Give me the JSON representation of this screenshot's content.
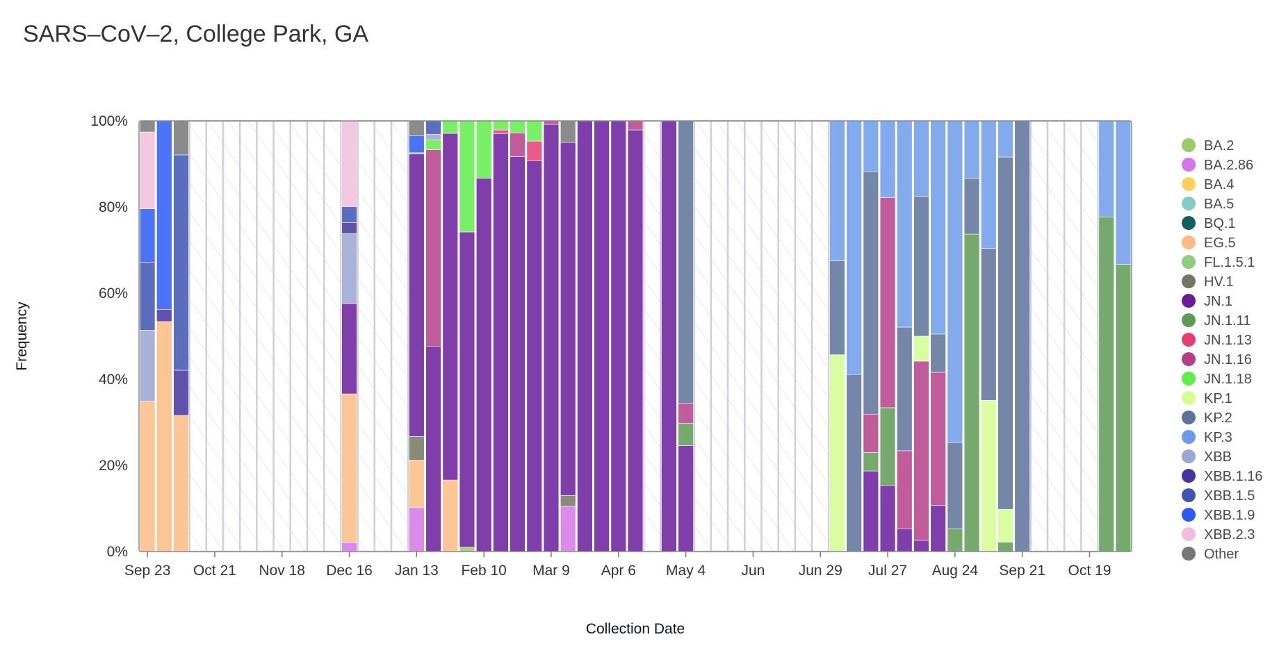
{
  "chart_data": {
    "type": "bar",
    "stacked": true,
    "title": "SARS–CoV–2, College Park, GA",
    "xlabel": "Collection Date",
    "ylabel": "Frequency",
    "ylim": [
      0,
      100
    ],
    "yticks": [
      "0%",
      "20%",
      "40%",
      "60%",
      "80%",
      "100%"
    ],
    "grid": false,
    "legend_position": "right",
    "n_weeks": 59,
    "xticks": [
      {
        "week": 0,
        "label": "Sep 23"
      },
      {
        "week": 4,
        "label": "Oct 21"
      },
      {
        "week": 8,
        "label": "Nov 18"
      },
      {
        "week": 12,
        "label": "Dec 16"
      },
      {
        "week": 16,
        "label": "Jan 13"
      },
      {
        "week": 20,
        "label": "Feb 10"
      },
      {
        "week": 24,
        "label": "Mar 9"
      },
      {
        "week": 28,
        "label": "Apr 6"
      },
      {
        "week": 32,
        "label": "May 4"
      },
      {
        "week": 36,
        "label": "Jun"
      },
      {
        "week": 40,
        "label": "Jun 29"
      },
      {
        "week": 44,
        "label": "Jul 27"
      },
      {
        "week": 48,
        "label": "Aug 24"
      },
      {
        "week": 52,
        "label": "Sep 21"
      },
      {
        "week": 56,
        "label": "Oct 19"
      }
    ],
    "legend": [
      {
        "name": "BA.2",
        "color": "#9cc96b"
      },
      {
        "name": "BA.2.86",
        "color": "#d575e8"
      },
      {
        "name": "BA.4",
        "color": "#fdd05c"
      },
      {
        "name": "BA.5",
        "color": "#84cbc3"
      },
      {
        "name": "BQ.1",
        "color": "#165e5f"
      },
      {
        "name": "EG.5",
        "color": "#fcbb84"
      },
      {
        "name": "FL.1.5.1",
        "color": "#8fcd7e"
      },
      {
        "name": "HV.1",
        "color": "#767563"
      },
      {
        "name": "JN.1",
        "color": "#681c9a"
      },
      {
        "name": "JN.1.11",
        "color": "#5e9a55"
      },
      {
        "name": "JN.1.13",
        "color": "#e43e74"
      },
      {
        "name": "JN.1.16",
        "color": "#b53f87"
      },
      {
        "name": "JN.1.18",
        "color": "#60ec4b"
      },
      {
        "name": "KP.1",
        "color": "#d5fd90"
      },
      {
        "name": "KP.2",
        "color": "#5d7299"
      },
      {
        "name": "KP.3",
        "color": "#6d9be9"
      },
      {
        "name": "XBB",
        "color": "#9aa6d4"
      },
      {
        "name": "XBB.1.16",
        "color": "#45359c"
      },
      {
        "name": "XBB.1.5",
        "color": "#3e55b2"
      },
      {
        "name": "XBB.1.9",
        "color": "#2d5af4"
      },
      {
        "name": "XBB.2.3",
        "color": "#f2bddc"
      },
      {
        "name": "Other",
        "color": "#777777"
      }
    ],
    "bars": [
      {
        "week": 0,
        "segments": [
          [
            "EG.5",
            34.9
          ],
          [
            "XBB",
            16.5
          ],
          [
            "XBB.1.5",
            15.8
          ],
          [
            "XBB.1.9",
            12.4
          ],
          [
            "XBB.2.3",
            17.8
          ],
          [
            "Other",
            2.6
          ]
        ]
      },
      {
        "week": 1,
        "segments": [
          [
            "EG.5",
            53.4
          ],
          [
            "XBB.1.16",
            2.8
          ],
          [
            "XBB.1.9",
            43.8
          ]
        ]
      },
      {
        "week": 2,
        "segments": [
          [
            "EG.5",
            31.6
          ],
          [
            "XBB.1.16",
            10.5
          ],
          [
            "XBB.1.5",
            50.0
          ],
          [
            "Other",
            7.9
          ]
        ]
      },
      {
        "week": 12,
        "segments": [
          [
            "BA.2.86",
            2.1
          ],
          [
            "EG.5",
            34.5
          ],
          [
            "JN.1",
            21.0
          ],
          [
            "XBB",
            16.2
          ],
          [
            "XBB.1.16",
            2.6
          ],
          [
            "XBB.1.5",
            3.7
          ],
          [
            "XBB.2.3",
            19.9
          ]
        ]
      },
      {
        "week": 16,
        "segments": [
          [
            "BA.2.86",
            10.2
          ],
          [
            "EG.5",
            11.0
          ],
          [
            "HV.1",
            5.5
          ],
          [
            "JN.1",
            65.6
          ],
          [
            "XBB",
            0.3
          ],
          [
            "XBB.1.9",
            3.9
          ],
          [
            "Other",
            3.5
          ]
        ]
      },
      {
        "week": 17,
        "segments": [
          [
            "JN.1",
            47.7
          ],
          [
            "JN.1.16",
            45.6
          ],
          [
            "JN.1.18",
            2.3
          ],
          [
            "XBB",
            1.3
          ],
          [
            "XBB.1.5",
            3.1
          ]
        ]
      },
      {
        "week": 18,
        "segments": [
          [
            "EG.5",
            16.6
          ],
          [
            "JN.1",
            80.5
          ],
          [
            "JN.1.18",
            2.9
          ]
        ]
      },
      {
        "week": 19,
        "segments": [
          [
            "BA.2",
            1.0
          ],
          [
            "JN.1",
            73.2
          ],
          [
            "JN.1.18",
            25.8
          ]
        ]
      },
      {
        "week": 20,
        "segments": [
          [
            "JN.1",
            86.7
          ],
          [
            "JN.1.18",
            13.3
          ]
        ]
      },
      {
        "week": 21,
        "segments": [
          [
            "JN.1",
            97.0
          ],
          [
            "JN.1.13",
            0.9
          ],
          [
            "JN.1.18",
            2.1
          ]
        ]
      },
      {
        "week": 22,
        "segments": [
          [
            "JN.1",
            91.7
          ],
          [
            "JN.1.16",
            5.5
          ],
          [
            "JN.1.18",
            2.8
          ]
        ]
      },
      {
        "week": 23,
        "segments": [
          [
            "JN.1",
            90.7
          ],
          [
            "JN.1.13",
            4.6
          ],
          [
            "JN.1.18",
            4.7
          ]
        ]
      },
      {
        "week": 24,
        "segments": [
          [
            "JN.1",
            99.2
          ],
          [
            "JN.1.16",
            0.8
          ]
        ]
      },
      {
        "week": 25,
        "segments": [
          [
            "BA.2.86",
            10.5
          ],
          [
            "HV.1",
            2.5
          ],
          [
            "JN.1",
            82.0
          ],
          [
            "Other",
            5.0
          ]
        ]
      },
      {
        "week": 26,
        "segments": [
          [
            "JN.1",
            100.0
          ]
        ]
      },
      {
        "week": 27,
        "segments": [
          [
            "JN.1",
            100.0
          ]
        ]
      },
      {
        "week": 28,
        "segments": [
          [
            "JN.1",
            100.0
          ]
        ]
      },
      {
        "week": 29,
        "segments": [
          [
            "JN.1",
            97.9
          ],
          [
            "JN.1.16",
            2.1
          ]
        ]
      },
      {
        "week": 31,
        "segments": [
          [
            "JN.1",
            100.0
          ]
        ]
      },
      {
        "week": 32,
        "segments": [
          [
            "JN.1",
            24.6
          ],
          [
            "JN.1.11",
            5.2
          ],
          [
            "JN.1.16",
            4.6
          ],
          [
            "KP.2",
            65.6
          ]
        ]
      },
      {
        "week": 41,
        "segments": [
          [
            "KP.1",
            45.7
          ],
          [
            "KP.2",
            21.8
          ],
          [
            "KP.3",
            32.5
          ]
        ]
      },
      {
        "week": 42,
        "segments": [
          [
            "KP.2",
            41.1
          ],
          [
            "KP.3",
            58.9
          ]
        ]
      },
      {
        "week": 43,
        "segments": [
          [
            "JN.1",
            18.7
          ],
          [
            "JN.1.11",
            4.3
          ],
          [
            "JN.1.16",
            8.9
          ],
          [
            "KP.2",
            56.3
          ],
          [
            "KP.3",
            11.8
          ]
        ]
      },
      {
        "week": 44,
        "segments": [
          [
            "JN.1",
            15.3
          ],
          [
            "JN.1.11",
            18.1
          ],
          [
            "JN.1.16",
            48.8
          ],
          [
            "KP.3",
            17.8
          ]
        ]
      },
      {
        "week": 45,
        "segments": [
          [
            "JN.1",
            5.3
          ],
          [
            "JN.1.16",
            18.1
          ],
          [
            "KP.2",
            28.7
          ],
          [
            "KP.3",
            47.9
          ]
        ]
      },
      {
        "week": 46,
        "segments": [
          [
            "JN.1",
            2.6
          ],
          [
            "JN.1.16",
            41.6
          ],
          [
            "KP.1",
            5.8
          ],
          [
            "KP.2",
            32.5
          ],
          [
            "KP.3",
            17.5
          ]
        ]
      },
      {
        "week": 47,
        "segments": [
          [
            "JN.1",
            10.7
          ],
          [
            "JN.1.16",
            30.9
          ],
          [
            "KP.2",
            8.9
          ],
          [
            "KP.3",
            49.5
          ]
        ]
      },
      {
        "week": 48,
        "segments": [
          [
            "JN.1.11",
            5.3
          ],
          [
            "KP.2",
            20.0
          ],
          [
            "KP.3",
            74.7
          ]
        ]
      },
      {
        "week": 49,
        "segments": [
          [
            "JN.1.11",
            73.7
          ],
          [
            "KP.2",
            13.0
          ],
          [
            "KP.3",
            13.3
          ]
        ]
      },
      {
        "week": 50,
        "segments": [
          [
            "KP.1",
            35.1
          ],
          [
            "KP.2",
            35.3
          ],
          [
            "KP.3",
            29.6
          ]
        ]
      },
      {
        "week": 51,
        "segments": [
          [
            "JN.1.11",
            2.2
          ],
          [
            "KP.1",
            7.6
          ],
          [
            "KP.2",
            81.8
          ],
          [
            "KP.3",
            8.4
          ]
        ]
      },
      {
        "week": 52,
        "segments": [
          [
            "KP.2",
            100.0
          ]
        ]
      },
      {
        "week": 57,
        "segments": [
          [
            "JN.1.11",
            77.7
          ],
          [
            "KP.3",
            22.3
          ]
        ]
      },
      {
        "week": 58,
        "segments": [
          [
            "JN.1.11",
            66.7
          ],
          [
            "KP.3",
            33.3
          ]
        ]
      }
    ]
  }
}
